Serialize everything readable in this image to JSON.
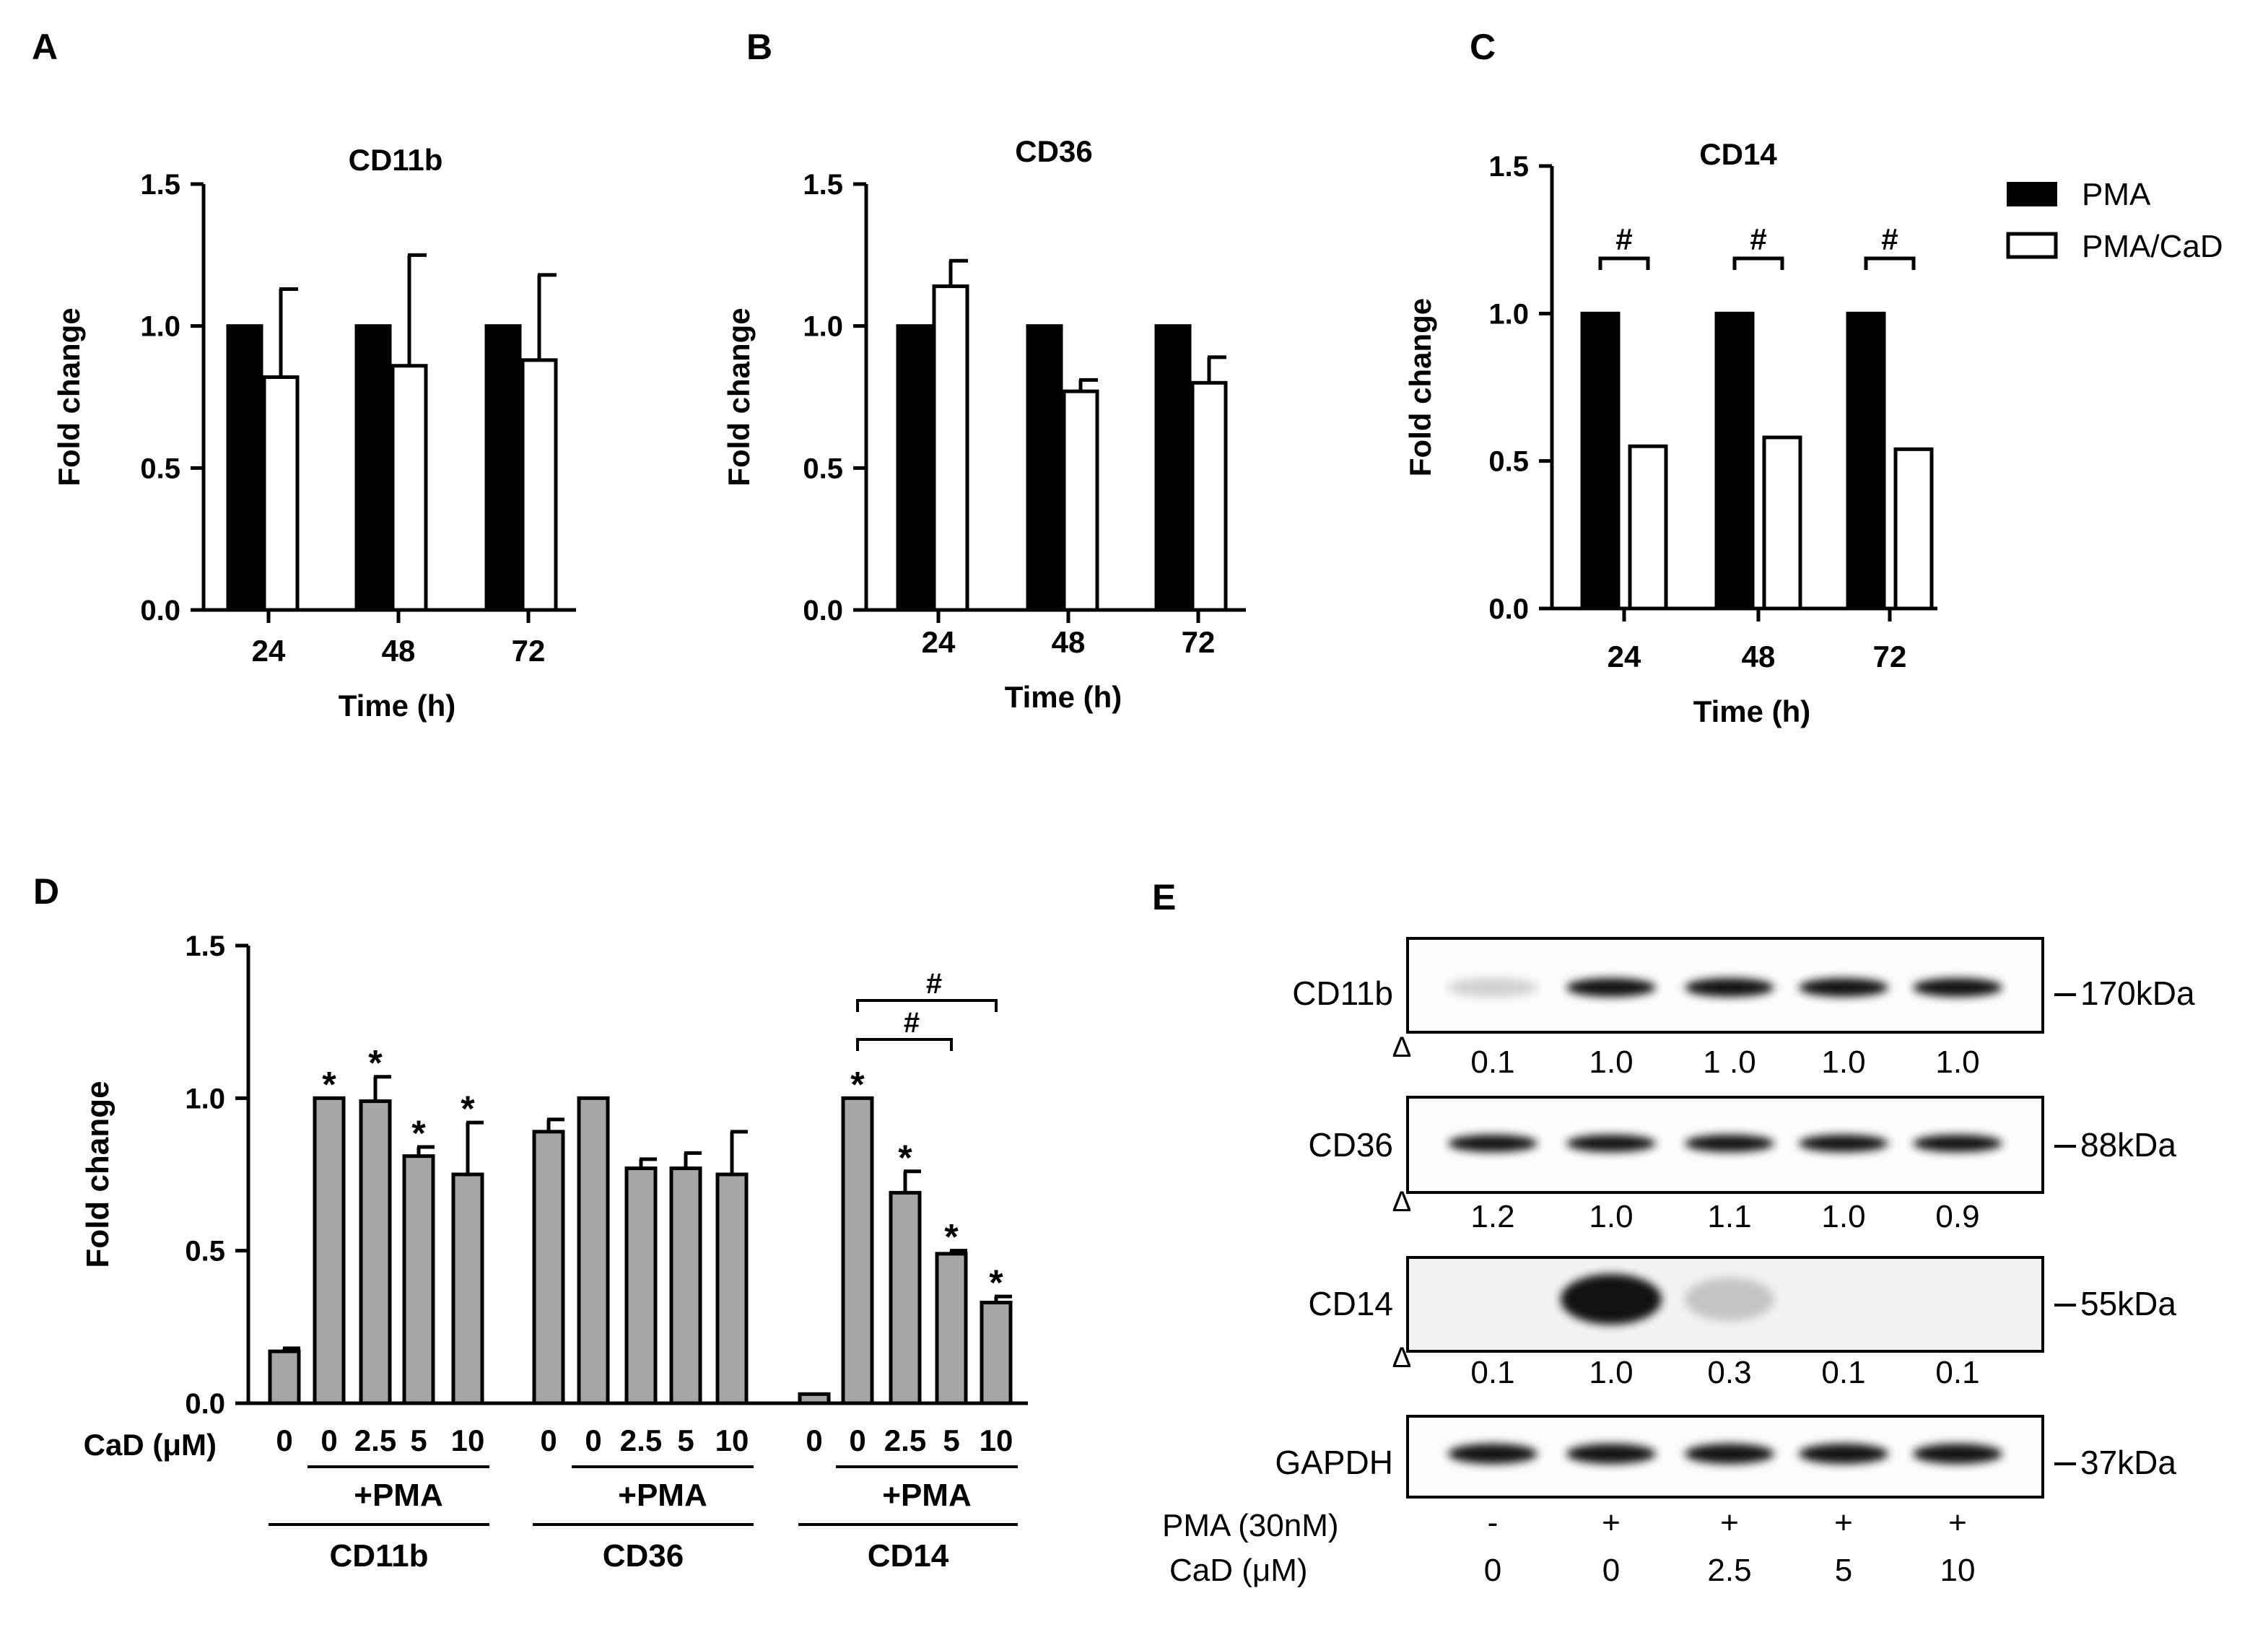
{
  "panel_letters": {
    "a": "A",
    "b": "B",
    "c": "C",
    "d": "D",
    "e": "E"
  },
  "legend": {
    "pma": "PMA",
    "pma_cad": "PMA/CaD"
  },
  "colors": {
    "pma": "#000000",
    "pma_cad": "#ffffff",
    "gray_bar": "#a6a6a6",
    "ink": "#000000"
  },
  "chart_data": [
    {
      "id": "A",
      "type": "bar",
      "title": "CD11b",
      "xlabel": "Time (h)",
      "ylabel": "Fold change",
      "ylim": [
        0,
        1.5
      ],
      "yticks": [
        "0.0",
        "0.5",
        "1.0",
        "1.5"
      ],
      "categories": [
        "24",
        "48",
        "72"
      ],
      "series": [
        {
          "name": "PMA",
          "values": [
            1.0,
            1.0,
            1.0
          ],
          "errors": [
            0,
            0,
            0
          ]
        },
        {
          "name": "PMA/CaD",
          "values": [
            0.82,
            0.86,
            0.88
          ],
          "errors": [
            0.31,
            0.39,
            0.3
          ]
        }
      ]
    },
    {
      "id": "B",
      "type": "bar",
      "title": "CD36",
      "xlabel": "Time (h)",
      "ylabel": "Fold change",
      "ylim": [
        0,
        1.5
      ],
      "yticks": [
        "0.0",
        "0.5",
        "1.0",
        "1.5"
      ],
      "categories": [
        "24",
        "48",
        "72"
      ],
      "series": [
        {
          "name": "PMA",
          "values": [
            1.0,
            1.0,
            1.0
          ],
          "errors": [
            0,
            0,
            0
          ]
        },
        {
          "name": "PMA/CaD",
          "values": [
            1.14,
            0.77,
            0.8
          ],
          "errors": [
            0.09,
            0.04,
            0.09
          ]
        }
      ]
    },
    {
      "id": "C",
      "type": "bar",
      "title": "CD14",
      "xlabel": "Time (h)",
      "ylabel": "Fold change",
      "ylim": [
        0,
        1.5
      ],
      "yticks": [
        "0.0",
        "0.5",
        "1.0",
        "1.5"
      ],
      "categories": [
        "24",
        "48",
        "72"
      ],
      "series": [
        {
          "name": "PMA",
          "values": [
            1.0,
            1.0,
            1.0
          ],
          "errors": [
            0,
            0,
            0
          ]
        },
        {
          "name": "PMA/CaD",
          "values": [
            0.55,
            0.58,
            0.54
          ],
          "errors": [
            0,
            0,
            0
          ]
        }
      ],
      "significance": [
        "#",
        "#",
        "#"
      ]
    },
    {
      "id": "D",
      "type": "bar",
      "ylabel": "Fold change",
      "ylim": [
        0,
        1.5
      ],
      "yticks": [
        "0.0",
        "0.5",
        "1.0",
        "1.5"
      ],
      "dose_label": "CaD (μM)",
      "treatment_label": "+PMA",
      "groups": [
        {
          "name": "CD11b",
          "doses": [
            "0",
            "0",
            "2.5",
            "5",
            "10"
          ],
          "values": [
            0.17,
            1.0,
            0.99,
            0.81,
            0.75
          ],
          "errors": [
            0.01,
            0,
            0.08,
            0.03,
            0.17
          ],
          "marks": [
            "",
            "*",
            "*",
            "*",
            "*"
          ]
        },
        {
          "name": "CD36",
          "doses": [
            "0",
            "0",
            "2.5",
            "5",
            "10"
          ],
          "values": [
            0.89,
            1.0,
            0.77,
            0.77,
            0.75
          ],
          "errors": [
            0.04,
            0,
            0.03,
            0.05,
            0.14
          ],
          "marks": [
            "",
            "",
            "",
            "",
            ""
          ]
        },
        {
          "name": "CD14",
          "doses": [
            "0",
            "0",
            "2.5",
            "5",
            "10"
          ],
          "values": [
            0.03,
            1.0,
            0.69,
            0.49,
            0.33
          ],
          "errors": [
            0,
            0,
            0.07,
            0.01,
            0.02
          ],
          "marks": [
            "",
            "*",
            "*",
            "*",
            "*"
          ]
        }
      ],
      "brackets": [
        "#",
        "#"
      ]
    }
  ],
  "blot": {
    "bands": [
      {
        "name": "CD11b",
        "size": "170kDa",
        "values": [
          "0.1",
          "1.0",
          "1 .0",
          "1.0",
          "1.0"
        ]
      },
      {
        "name": "CD36",
        "size": "88kDa",
        "values": [
          "1.2",
          "1.0",
          "1.1",
          "1.0",
          "0.9"
        ]
      },
      {
        "name": "CD14",
        "size": "55kDa",
        "values": [
          "0.1",
          "1.0",
          "0.3",
          "0.1",
          "0.1"
        ]
      },
      {
        "name": "GAPDH",
        "size": "37kDa",
        "values": []
      }
    ],
    "delta_symbol": "Δ",
    "pma_label": "PMA (30nM)",
    "pma_values": [
      "-",
      "+",
      "+",
      "+",
      "+"
    ],
    "cad_label": "CaD (μM)",
    "cad_values": [
      "0",
      "0",
      "2.5",
      "5",
      "10"
    ]
  }
}
